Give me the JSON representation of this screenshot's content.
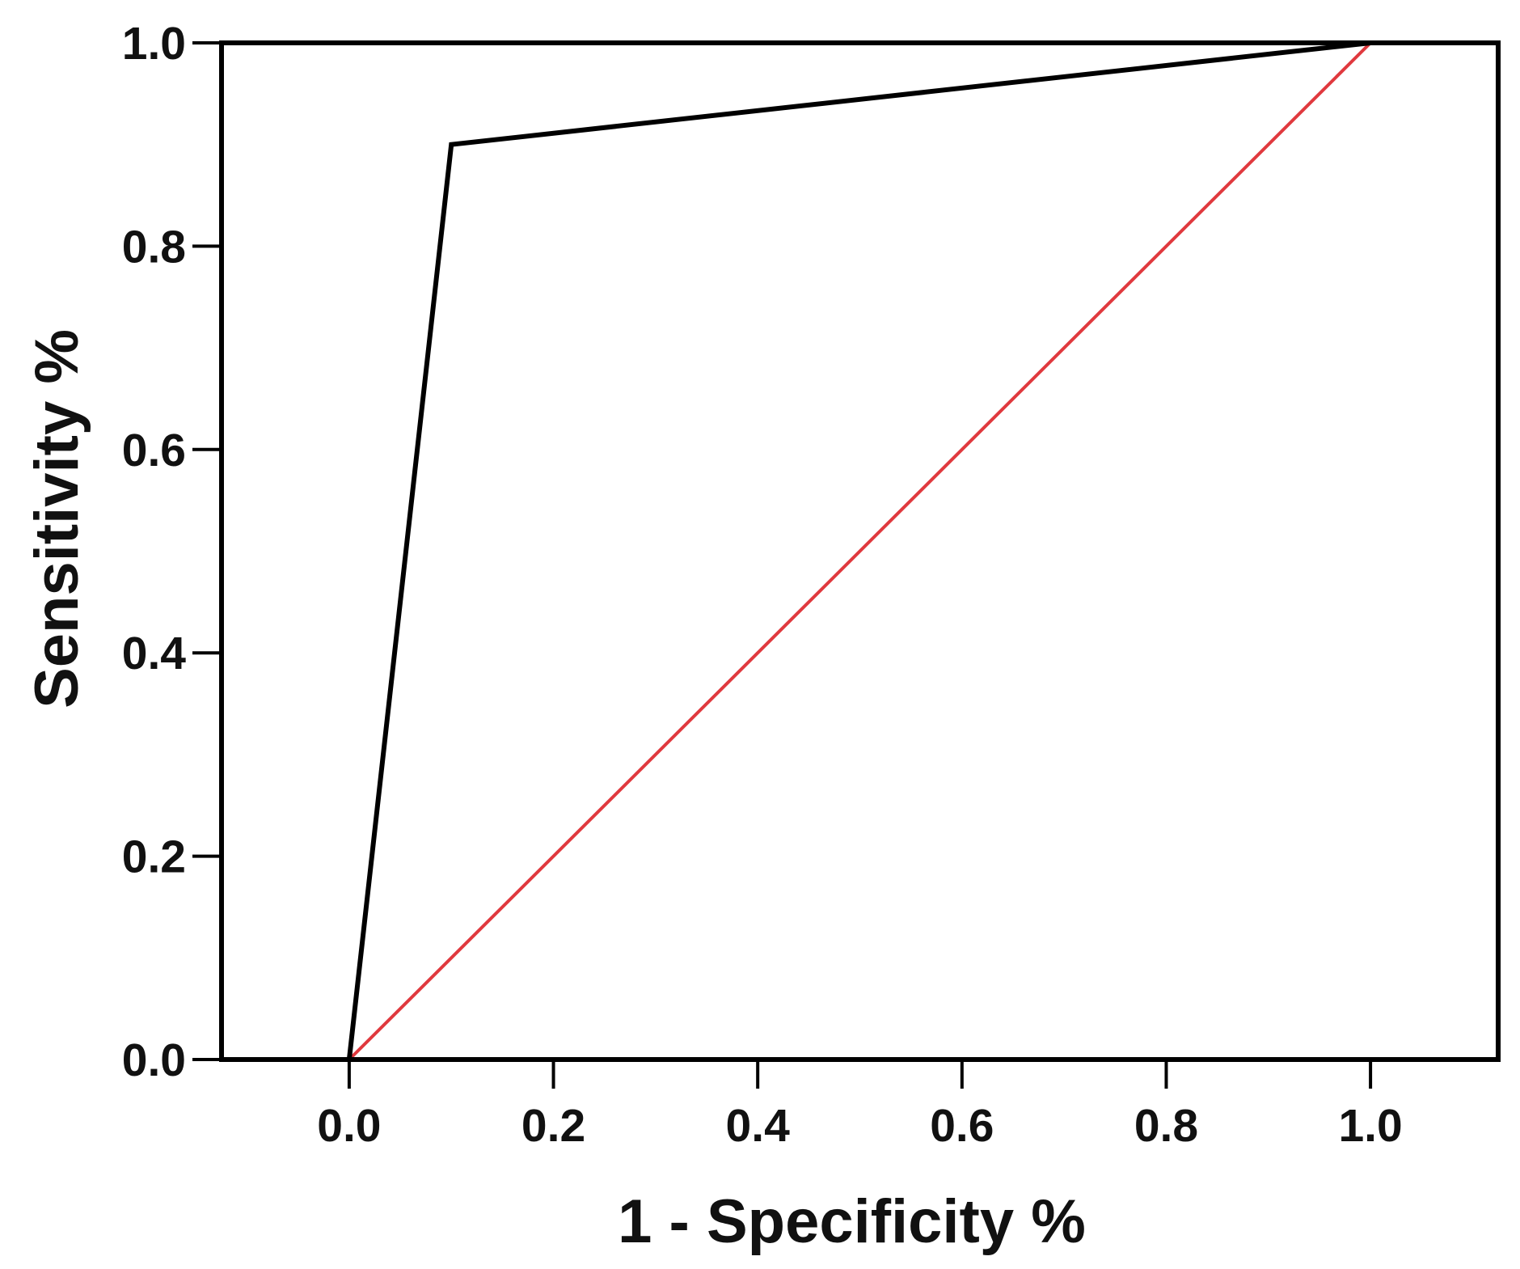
{
  "chart_data": {
    "type": "line",
    "title": "",
    "xlabel": "1 - Specificity %",
    "ylabel": "Sensitivity %",
    "xlim": [
      -0.125,
      1.125
    ],
    "ylim": [
      0.0,
      1.0
    ],
    "xticks": [
      0.0,
      0.2,
      0.4,
      0.6,
      0.8,
      1.0
    ],
    "yticks": [
      0.0,
      0.2,
      0.4,
      0.6,
      0.8,
      1.0
    ],
    "xtick_labels": [
      "0.0",
      "0.2",
      "0.4",
      "0.6",
      "0.8",
      "1.0"
    ],
    "ytick_labels": [
      "0.0",
      "0.2",
      "0.4",
      "0.6",
      "0.8",
      "1.0"
    ],
    "grid": false,
    "legend": "none",
    "series": [
      {
        "color": "#000000",
        "x": [
          0.0,
          0.1,
          1.0
        ],
        "y": [
          0.0,
          0.9,
          1.0
        ]
      },
      {
        "color": "#e0393e",
        "x": [
          0.0,
          1.0
        ],
        "y": [
          0.0,
          1.0
        ]
      }
    ]
  }
}
